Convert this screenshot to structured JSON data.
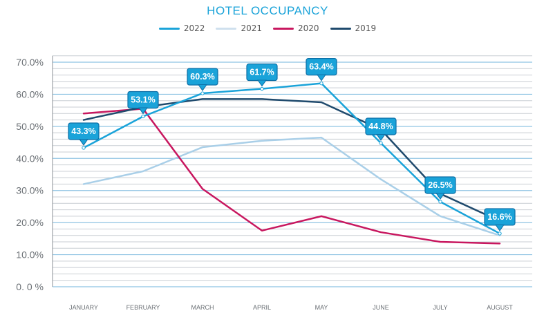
{
  "chart_data": {
    "type": "line",
    "title": "HOTEL OCCUPANCY",
    "categories": [
      "JANUARY",
      "FEBRUARY",
      "MARCH",
      "APRIL",
      "MAY",
      "JUNE",
      "JULY",
      "AUGUST"
    ],
    "series": [
      {
        "name": "2022",
        "color": "#1aa3d9",
        "values": [
          43.3,
          53.1,
          60.3,
          61.7,
          63.4,
          44.8,
          26.5,
          16.6
        ]
      },
      {
        "name": "2021",
        "color": "#a9cfe8",
        "values": [
          32,
          36,
          43.5,
          45.5,
          46.5,
          33.5,
          22,
          16
        ]
      },
      {
        "name": "2020",
        "color": "#c8175f",
        "values": [
          54,
          55.5,
          30.5,
          17.5,
          22,
          17,
          14,
          13.5
        ]
      },
      {
        "name": "2019",
        "color": "#1f4a6d",
        "values": [
          52,
          56,
          58.5,
          58.5,
          57.5,
          49,
          29,
          20.5
        ]
      }
    ],
    "y_tick_labels": [
      "0. 0 %",
      "10.0%",
      "20.0%",
      "30.0%",
      "40.0%",
      "50.0%",
      "60.0%",
      "70.0%"
    ],
    "ylim": [
      0,
      72
    ],
    "callouts": [
      "43.3%",
      "53.1%",
      "60.3%",
      "61.7%",
      "63.4%",
      "44.8%",
      "26.5%",
      "16.6%"
    ],
    "legend_position": "top-center"
  }
}
